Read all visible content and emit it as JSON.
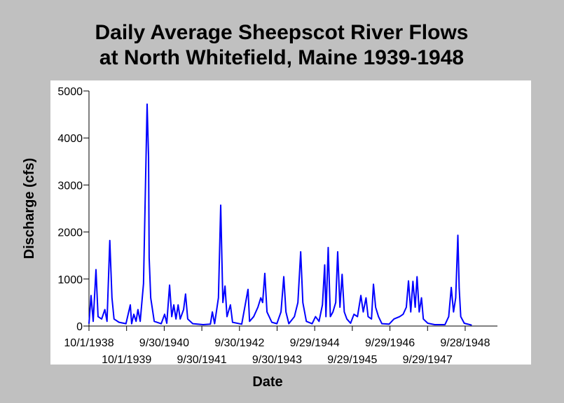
{
  "chart_data": {
    "type": "line",
    "title": [
      "Daily Average Sheepscot River Flows",
      "at North Whitefield, Maine 1939-1948"
    ],
    "xlabel": "Date",
    "ylabel": "Discharge (cfs)",
    "color": "#0000ff",
    "x": [
      "1938-10-01",
      "1938-10-21",
      "1938-11-11",
      "1938-12-08",
      "1938-12-28",
      "1939-02-01",
      "1939-03-04",
      "1939-03-25",
      "1939-04-21",
      "1939-05-12",
      "1939-06-01",
      "1939-07-19",
      "1939-09-25",
      "1939-11-06",
      "1939-11-19",
      "1939-12-10",
      "1940-01-01",
      "1940-01-19",
      "1940-02-10",
      "1940-03-13",
      "1940-04-17",
      "1940-05-01",
      "1940-05-07",
      "1940-05-22",
      "1940-06-25",
      "1940-09-01",
      "1940-10-04",
      "1940-10-25",
      "1940-11-21",
      "1940-12-12",
      "1941-01-01",
      "1941-01-22",
      "1941-02-12",
      "1941-03-04",
      "1941-04-06",
      "1941-04-25",
      "1941-05-16",
      "1941-07-04",
      "1941-10-13",
      "1941-12-22",
      "1942-01-10",
      "1942-02-01",
      "1942-03-10",
      "1942-04-01",
      "1942-04-22",
      "1942-05-13",
      "1942-06-01",
      "1942-07-04",
      "1942-07-25",
      "1942-10-22",
      "1942-12-22",
      "1943-01-06",
      "1943-02-15",
      "1943-03-28",
      "1943-04-25",
      "1943-05-13",
      "1943-06-03",
      "1943-06-24",
      "1943-08-10",
      "1943-09-28",
      "1943-11-07",
      "1943-12-04",
      "1943-12-25",
      "1944-01-22",
      "1944-03-16",
      "1944-04-19",
      "1944-05-16",
      "1944-06-06",
      "1944-07-10",
      "1944-09-04",
      "1944-10-07",
      "1944-11-10",
      "1944-12-13",
      "1945-01-04",
      "1945-01-16",
      "1945-02-07",
      "1945-02-28",
      "1945-03-25",
      "1945-04-21",
      "1945-05-10",
      "1945-06-01",
      "1945-06-22",
      "1945-07-13",
      "1945-08-07",
      "1945-09-12",
      "1945-10-15",
      "1945-11-18",
      "1945-12-21",
      "1946-01-13",
      "1946-02-09",
      "1946-03-01",
      "1946-04-03",
      "1946-04-22",
      "1946-05-13",
      "1946-06-10",
      "1946-07-13",
      "1946-09-21",
      "1946-11-07",
      "1947-01-01",
      "1947-02-04",
      "1947-03-07",
      "1947-03-28",
      "1947-04-19",
      "1947-05-10",
      "1947-06-01",
      "1947-06-19",
      "1947-07-10",
      "1947-08-01",
      "1947-08-19",
      "1947-10-01",
      "1947-12-07",
      "1948-03-16",
      "1948-04-21",
      "1948-05-16",
      "1948-06-07",
      "1948-06-28",
      "1948-07-19",
      "1948-08-01",
      "1948-08-16",
      "1948-09-19",
      "1948-12-01"
    ],
    "values": [
      50,
      650,
      100,
      1200,
      200,
      150,
      350,
      100,
      1820,
      600,
      150,
      80,
      50,
      450,
      50,
      250,
      100,
      350,
      100,
      900,
      4720,
      3600,
      1450,
      600,
      100,
      50,
      250,
      60,
      870,
      200,
      450,
      150,
      450,
      150,
      350,
      680,
      150,
      50,
      30,
      40,
      300,
      50,
      600,
      2570,
      500,
      850,
      200,
      450,
      80,
      40,
      780,
      100,
      200,
      400,
      600,
      500,
      1120,
      300,
      80,
      50,
      300,
      1050,
      300,
      50,
      200,
      500,
      1580,
      500,
      100,
      50,
      200,
      100,
      450,
      1300,
      200,
      1670,
      200,
      300,
      500,
      1580,
      400,
      1100,
      300,
      150,
      60,
      250,
      200,
      650,
      300,
      600,
      200,
      150,
      890,
      400,
      200,
      50,
      40,
      150,
      200,
      250,
      400,
      960,
      300,
      950,
      400,
      1050,
      300,
      600,
      150,
      60,
      30,
      30,
      200,
      820,
      300,
      600,
      1930,
      800,
      200,
      60,
      20
    ],
    "xlim": [
      "1938-10-01",
      "1949-08-07"
    ],
    "xticks": [
      {
        "value": "1938-10-01",
        "label": "10/1/1938"
      },
      {
        "value": "1939-10-01",
        "label": "10/1/1939"
      },
      {
        "value": "1940-09-30",
        "label": "9/30/1940"
      },
      {
        "value": "1941-09-30",
        "label": "9/30/1941"
      },
      {
        "value": "1942-09-30",
        "label": "9/30/1942"
      },
      {
        "value": "1943-09-30",
        "label": "9/30/1943"
      },
      {
        "value": "1944-09-29",
        "label": "9/29/1944"
      },
      {
        "value": "1945-09-29",
        "label": "9/29/1945"
      },
      {
        "value": "1946-09-29",
        "label": "9/29/1946"
      },
      {
        "value": "1947-09-29",
        "label": "9/29/1947"
      },
      {
        "value": "1948-09-28",
        "label": "9/28/1948"
      }
    ],
    "ylim": [
      0,
      5000
    ],
    "yticks": [
      0,
      1000,
      2000,
      3000,
      4000,
      5000
    ],
    "grid": false
  }
}
